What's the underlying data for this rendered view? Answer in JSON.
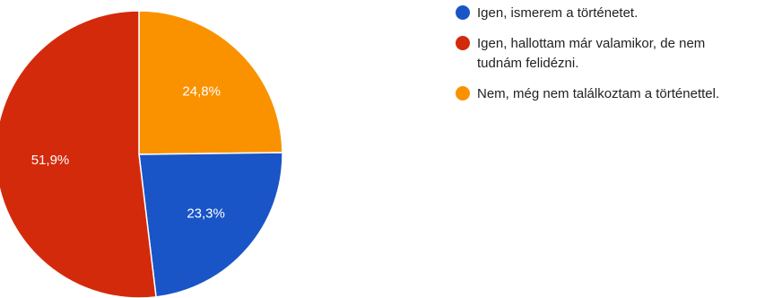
{
  "chart_data": {
    "type": "pie",
    "slices": [
      {
        "label": "Igen, ismerem a történetet.",
        "value": 23.3,
        "display": "23,3%",
        "color": "#1a55c7"
      },
      {
        "label": "Igen, hallottam már valamikor, de nem tudnám felidézni.",
        "value": 51.9,
        "display": "51,9%",
        "color": "#d42a0c"
      },
      {
        "label": "Nem, még nem találkoztam a történettel.",
        "value": 24.8,
        "display": "24,8%",
        "color": "#fa9200"
      }
    ],
    "slice_order": [
      2,
      0,
      1
    ],
    "legend": [
      {
        "lines": [
          "Igen, ismerem a történetet."
        ],
        "color": "#1a55c7"
      },
      {
        "lines": [
          "Igen, hallottam már valamikor, de nem",
          "tudnám felidézni."
        ],
        "color": "#d42a0c"
      },
      {
        "lines": [
          "Nem, még nem találkoztam a történettel."
        ],
        "color": "#fa9200"
      }
    ],
    "legend_position": "right"
  }
}
